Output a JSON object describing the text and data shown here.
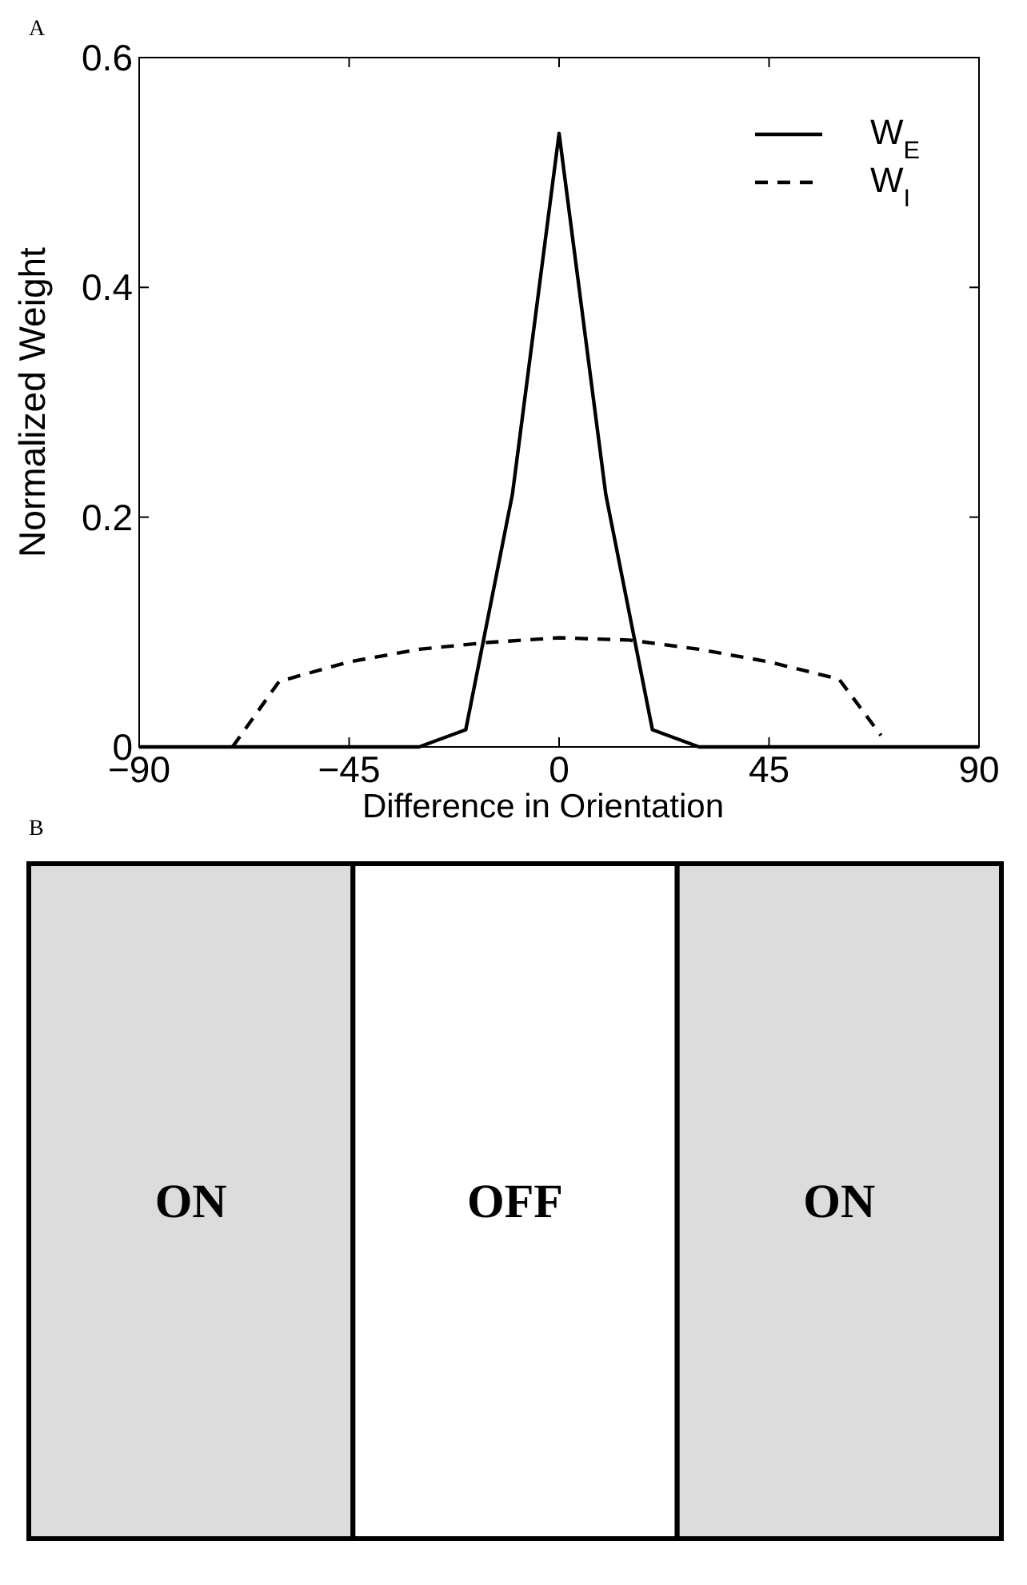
{
  "chart_data": [
    {
      "type": "line",
      "annotations": [
        "A"
      ],
      "xlabel": "Difference in Orientation",
      "ylabel": "Normalized Weight",
      "xlim": [
        -90,
        90
      ],
      "xticks": [
        -90,
        -45,
        0,
        45,
        90
      ],
      "ylim": [
        0,
        0.6
      ],
      "yticks": [
        0,
        0.2,
        0.4,
        0.6
      ],
      "grid": false,
      "legend": "top right",
      "series": [
        {
          "name": "W$_{E}$",
          "color": "#000000",
          "line_style": "solid",
          "x": [
            -90,
            -30,
            -20,
            -10,
            0,
            10,
            20,
            30,
            90
          ],
          "values": [
            0,
            0,
            0.015,
            0.22,
            0.534,
            0.22,
            0.015,
            0,
            0
          ]
        },
        {
          "name": "W$_{I}$",
          "color": "#000000",
          "line_style": "dashed",
          "x": [
            -70,
            -60,
            -45,
            -30,
            -15,
            0,
            15,
            30,
            45,
            60,
            69
          ],
          "values": [
            0,
            0.057,
            0.074,
            0.085,
            0.091,
            0.095,
            0.093,
            0.085,
            0.074,
            0.059,
            0.01
          ]
        }
      ]
    },
    {
      "type": "other",
      "title": "B",
      "annotations": [
        "ON",
        "OFF",
        "ON"
      ]
    }
  ]
}
